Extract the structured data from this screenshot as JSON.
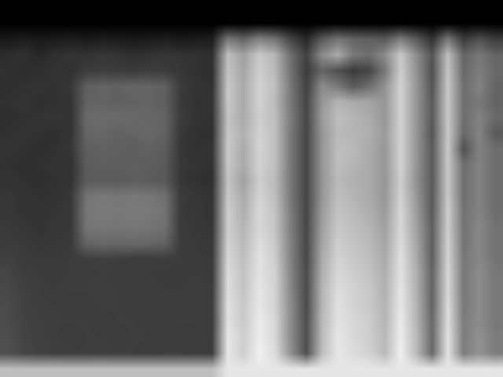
{
  "chart_data": {
    "type": "heatmap",
    "color": "gray",
    "tick_labels": false,
    "grid": false,
    "value_range": [
      0,
      255
    ],
    "cells": [
      [
        0,
        0,
        0,
        0,
        0,
        0,
        0,
        0,
        0,
        0,
        0,
        0,
        0,
        0,
        0,
        0,
        0,
        0,
        0,
        0,
        0,
        0,
        0,
        0,
        0,
        0,
        0,
        0,
        0,
        0,
        0,
        0
      ],
      [
        0,
        0,
        0,
        0,
        0,
        0,
        0,
        0,
        0,
        0,
        0,
        0,
        0,
        0,
        0,
        0,
        0,
        0,
        0,
        0,
        0,
        0,
        0,
        0,
        0,
        0,
        0,
        0,
        0,
        0,
        0,
        0
      ],
      [
        25,
        30,
        25,
        28,
        30,
        26,
        30,
        28,
        25,
        27,
        30,
        26,
        28,
        30,
        120,
        100,
        130,
        115,
        70,
        40,
        90,
        115,
        100,
        95,
        90,
        125,
        90,
        50,
        120,
        60,
        80,
        60
      ],
      [
        45,
        50,
        40,
        48,
        52,
        50,
        55,
        52,
        48,
        50,
        55,
        52,
        50,
        48,
        190,
        160,
        200,
        180,
        110,
        65,
        140,
        170,
        120,
        110,
        140,
        200,
        140,
        85,
        190,
        100,
        120,
        100
      ],
      [
        50,
        45,
        48,
        52,
        50,
        60,
        62,
        60,
        58,
        62,
        60,
        55,
        50,
        48,
        195,
        165,
        205,
        185,
        115,
        60,
        100,
        80,
        60,
        70,
        120,
        205,
        145,
        80,
        195,
        105,
        125,
        105
      ],
      [
        48,
        50,
        52,
        50,
        55,
        95,
        100,
        98,
        102,
        100,
        96,
        60,
        52,
        50,
        200,
        170,
        210,
        190,
        120,
        65,
        140,
        120,
        90,
        110,
        145,
        210,
        150,
        85,
        200,
        110,
        130,
        100
      ],
      [
        50,
        52,
        48,
        50,
        52,
        98,
        100,
        96,
        98,
        100,
        95,
        58,
        50,
        52,
        200,
        170,
        210,
        185,
        120,
        70,
        150,
        180,
        170,
        165,
        150,
        210,
        150,
        90,
        200,
        110,
        120,
        100
      ],
      [
        48,
        50,
        52,
        55,
        50,
        105,
        108,
        106,
        104,
        102,
        100,
        60,
        52,
        50,
        195,
        170,
        205,
        190,
        125,
        70,
        155,
        190,
        180,
        170,
        150,
        210,
        150,
        90,
        200,
        110,
        130,
        105
      ],
      [
        50,
        52,
        50,
        48,
        52,
        100,
        102,
        98,
        100,
        104,
        98,
        56,
        50,
        48,
        200,
        175,
        210,
        190,
        120,
        70,
        150,
        185,
        180,
        175,
        155,
        210,
        150,
        85,
        200,
        105,
        130,
        90
      ],
      [
        52,
        50,
        48,
        50,
        55,
        95,
        98,
        96,
        94,
        98,
        92,
        55,
        50,
        52,
        200,
        170,
        210,
        190,
        120,
        70,
        150,
        190,
        185,
        170,
        150,
        210,
        150,
        90,
        200,
        80,
        130,
        110
      ],
      [
        50,
        48,
        50,
        52,
        50,
        92,
        95,
        94,
        96,
        94,
        90,
        56,
        52,
        50,
        200,
        170,
        210,
        190,
        120,
        70,
        150,
        190,
        180,
        170,
        150,
        210,
        150,
        90,
        200,
        110,
        130,
        110
      ],
      [
        52,
        50,
        48,
        50,
        52,
        90,
        92,
        90,
        94,
        92,
        88,
        55,
        50,
        48,
        195,
        160,
        205,
        185,
        120,
        70,
        150,
        185,
        175,
        170,
        150,
        205,
        145,
        90,
        200,
        110,
        130,
        110
      ],
      [
        55,
        52,
        50,
        52,
        55,
        115,
        120,
        118,
        120,
        118,
        112,
        60,
        55,
        52,
        200,
        170,
        210,
        190,
        120,
        70,
        150,
        190,
        180,
        170,
        150,
        210,
        150,
        90,
        200,
        110,
        130,
        110
      ],
      [
        55,
        52,
        52,
        54,
        55,
        118,
        122,
        120,
        122,
        120,
        115,
        58,
        55,
        52,
        205,
        175,
        215,
        195,
        125,
        70,
        155,
        195,
        185,
        175,
        155,
        215,
        155,
        90,
        205,
        115,
        130,
        110
      ],
      [
        58,
        55,
        52,
        55,
        56,
        115,
        118,
        116,
        118,
        116,
        112,
        60,
        56,
        54,
        205,
        180,
        215,
        195,
        125,
        72,
        160,
        200,
        190,
        180,
        160,
        215,
        160,
        95,
        205,
        115,
        135,
        115
      ],
      [
        60,
        58,
        55,
        56,
        58,
        100,
        105,
        102,
        104,
        102,
        98,
        60,
        58,
        56,
        210,
        185,
        220,
        200,
        130,
        72,
        165,
        205,
        195,
        185,
        165,
        220,
        165,
        95,
        210,
        115,
        135,
        115
      ],
      [
        65,
        60,
        58,
        58,
        60,
        62,
        64,
        62,
        60,
        60,
        62,
        60,
        58,
        58,
        215,
        190,
        225,
        205,
        130,
        72,
        170,
        210,
        200,
        190,
        170,
        225,
        170,
        95,
        210,
        120,
        135,
        115
      ],
      [
        70,
        62,
        60,
        58,
        60,
        60,
        62,
        60,
        62,
        60,
        58,
        58,
        60,
        58,
        220,
        195,
        225,
        210,
        135,
        75,
        175,
        215,
        205,
        195,
        175,
        225,
        175,
        100,
        215,
        120,
        140,
        120
      ],
      [
        72,
        65,
        62,
        60,
        62,
        62,
        64,
        62,
        60,
        62,
        60,
        60,
        62,
        60,
        220,
        195,
        230,
        210,
        135,
        75,
        180,
        220,
        210,
        200,
        175,
        230,
        175,
        100,
        215,
        120,
        140,
        120
      ],
      [
        75,
        65,
        62,
        62,
        60,
        60,
        62,
        62,
        60,
        60,
        62,
        60,
        60,
        62,
        225,
        200,
        230,
        210,
        140,
        75,
        180,
        225,
        210,
        200,
        180,
        230,
        180,
        100,
        220,
        120,
        140,
        120
      ],
      [
        75,
        68,
        64,
        62,
        62,
        62,
        60,
        62,
        62,
        60,
        60,
        62,
        62,
        60,
        225,
        200,
        235,
        215,
        140,
        78,
        185,
        225,
        215,
        205,
        180,
        235,
        180,
        105,
        220,
        125,
        140,
        120
      ],
      [
        78,
        68,
        65,
        62,
        60,
        62,
        62,
        60,
        62,
        62,
        60,
        60,
        60,
        62,
        230,
        205,
        235,
        215,
        140,
        78,
        185,
        230,
        215,
        205,
        185,
        235,
        185,
        105,
        225,
        125,
        145,
        125
      ],
      [
        80,
        70,
        65,
        64,
        62,
        62,
        64,
        62,
        62,
        60,
        62,
        62,
        60,
        62,
        230,
        205,
        240,
        220,
        145,
        80,
        190,
        230,
        220,
        210,
        185,
        240,
        185,
        105,
        225,
        125,
        145,
        125
      ],
      [
        190,
        190,
        190,
        190,
        190,
        190,
        190,
        190,
        190,
        190,
        190,
        190,
        190,
        190,
        230,
        230,
        230,
        230,
        230,
        230,
        230,
        230,
        230,
        230,
        230,
        230,
        230,
        230,
        230,
        230,
        230,
        230
      ]
    ]
  }
}
